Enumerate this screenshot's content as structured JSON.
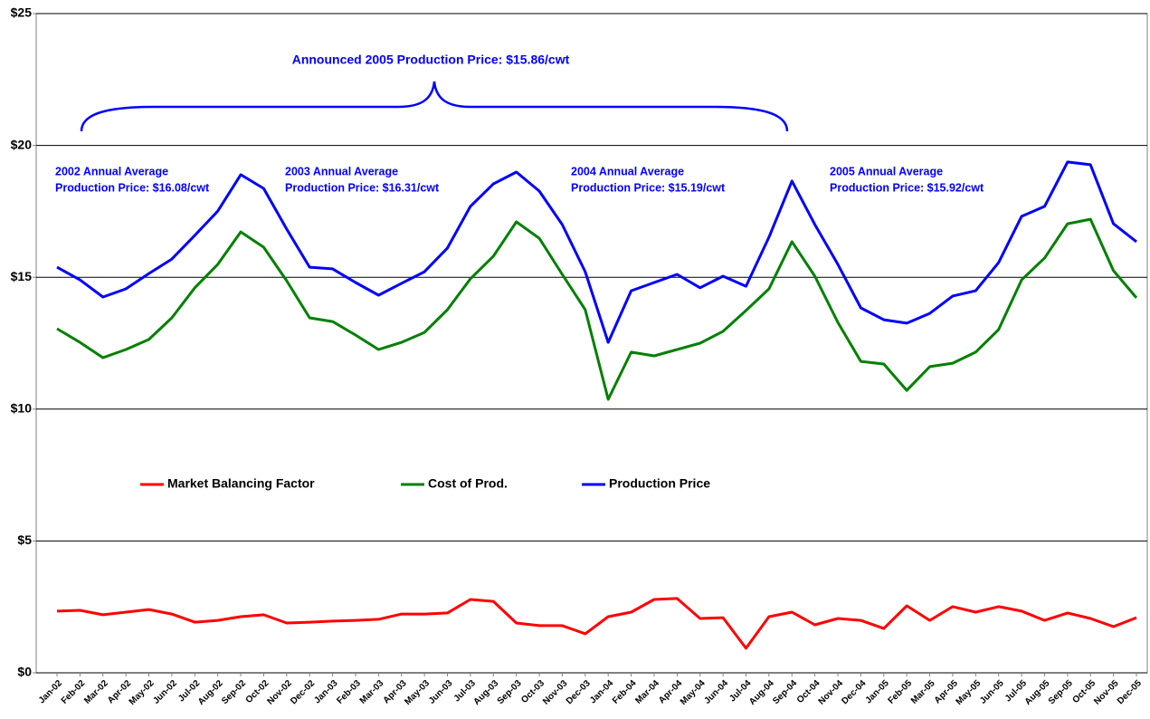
{
  "chart_data": {
    "type": "line",
    "categories": [
      "Jan-02",
      "Feb-02",
      "Mar-02",
      "Apr-02",
      "May-02",
      "Jun-02",
      "Jul-02",
      "Aug-02",
      "Sep-02",
      "Oct-02",
      "Nov-02",
      "Dec-02",
      "Jan-03",
      "Feb-03",
      "Mar-03",
      "Apr-03",
      "May-03",
      "Jun-03",
      "Jul-03",
      "Aug-03",
      "Sep-03",
      "Oct-03",
      "Nov-03",
      "Dec-03",
      "Jan-04",
      "Feb-04",
      "Mar-04",
      "Apr-04",
      "May-04",
      "Jun-04",
      "Jul-04",
      "Aug-04",
      "Sep-04",
      "Oct-04",
      "Nov-04",
      "Dec-04",
      "Jan-05",
      "Feb-05",
      "Mar-05",
      "Apr-05",
      "May-05",
      "Jun-05",
      "Jul-05",
      "Aug-05",
      "Sep-05",
      "Oct-05",
      "Nov-05",
      "Dec-05"
    ],
    "series": [
      {
        "name": "Market Balancing Factor",
        "color": "#ff0000",
        "values": [
          2.34,
          2.37,
          2.2,
          2.3,
          2.4,
          2.23,
          1.92,
          1.99,
          2.13,
          2.2,
          1.89,
          1.92,
          1.96,
          1.99,
          2.03,
          2.23,
          2.23,
          2.27,
          2.78,
          2.71,
          1.89,
          1.79,
          1.79,
          1.48,
          2.13,
          2.3,
          2.78,
          2.82,
          2.06,
          2.09,
          0.93,
          2.13,
          2.3,
          1.82,
          2.06,
          1.99,
          1.68,
          2.54,
          1.99,
          2.51,
          2.3,
          2.51,
          2.34,
          1.99,
          2.27,
          2.06,
          1.75,
          2.09
        ]
      },
      {
        "name": "Cost of Prod.",
        "color": "#008000",
        "values": [
          13.05,
          12.53,
          11.95,
          12.26,
          12.64,
          13.46,
          14.6,
          15.49,
          16.72,
          16.14,
          14.87,
          13.46,
          13.32,
          12.81,
          12.26,
          12.53,
          12.91,
          13.77,
          14.94,
          15.8,
          17.1,
          16.48,
          15.11,
          13.77,
          10.37,
          12.16,
          12.02,
          12.26,
          12.5,
          12.95,
          13.74,
          14.56,
          16.35,
          15.04,
          13.29,
          11.81,
          11.71,
          10.71,
          11.61,
          11.74,
          12.16,
          13.02,
          14.9,
          15.73,
          17.03,
          17.2,
          15.25,
          14.22
        ]
      },
      {
        "name": "Production Price",
        "color": "#0000ff",
        "values": [
          15.38,
          14.9,
          14.25,
          14.56,
          15.14,
          15.69,
          16.59,
          17.51,
          18.89,
          18.37,
          16.83,
          15.38,
          15.32,
          14.8,
          14.32,
          14.77,
          15.21,
          16.11,
          17.69,
          18.54,
          18.99,
          18.27,
          17.0,
          15.21,
          12.53,
          14.49,
          14.8,
          15.11,
          14.6,
          15.04,
          14.66,
          16.52,
          18.65,
          17.0,
          15.49,
          13.84,
          13.39,
          13.26,
          13.63,
          14.29,
          14.49,
          15.56,
          17.31,
          17.69,
          19.37,
          19.27,
          17.03,
          16.35
        ]
      }
    ],
    "ylim": [
      0,
      25
    ],
    "yticks": [
      {
        "value": 0,
        "label": "$0"
      },
      {
        "value": 5,
        "label": "$5"
      },
      {
        "value": 10,
        "label": "$10"
      },
      {
        "value": 15,
        "label": "$15"
      },
      {
        "value": 20,
        "label": "$20"
      },
      {
        "value": 25,
        "label": "$25"
      }
    ],
    "grid": true,
    "annotations": [
      {
        "lines": [
          "Announced 2005 Production Price: $15.86/cwt"
        ]
      },
      {
        "lines": [
          "2002 Annual Average",
          "Production Price: $16.08/cwt"
        ]
      },
      {
        "lines": [
          "2003 Annual Average",
          "Production Price: $16.31/cwt"
        ]
      },
      {
        "lines": [
          "2004 Annual Average",
          "Production Price: $15.19/cwt"
        ]
      },
      {
        "lines": [
          "2005 Annual Average",
          "Production Price: $15.92/cwt"
        ]
      }
    ]
  }
}
